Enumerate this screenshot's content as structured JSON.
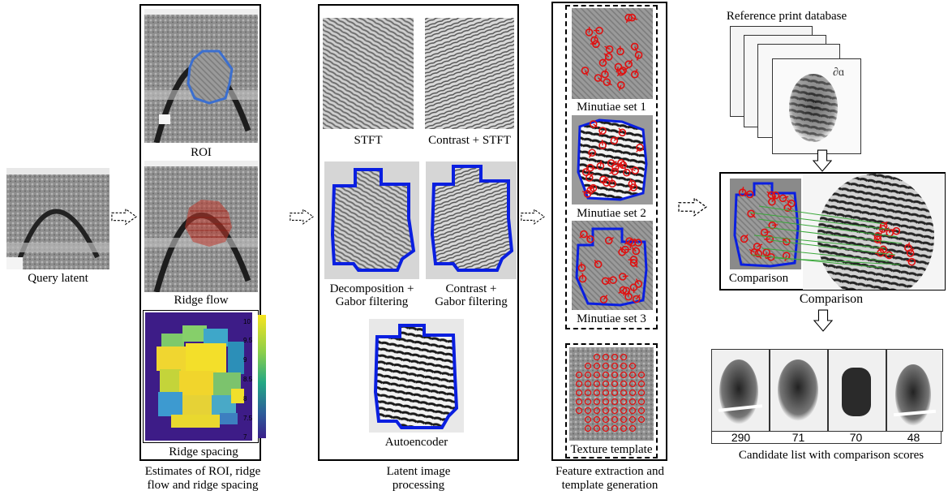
{
  "query": {
    "label": "Query latent"
  },
  "stage1": {
    "roi_label": "ROI",
    "ridge_flow_label": "Ridge flow",
    "ridge_spacing_label": "Ridge spacing",
    "colorbar_ticks": [
      "10",
      "9.5",
      "9",
      "8.5",
      "8",
      "7.5",
      "7"
    ],
    "caption_line1": "Estimates of ROI, ridge",
    "caption_line2": "flow and ridge spacing"
  },
  "stage2": {
    "stft_label": "STFT",
    "contrast_stft_label": "Contrast + STFT",
    "decomp_line1": "Decomposition +",
    "decomp_line2": "Gabor filtering",
    "contrast_gabor_line1": "Contrast +",
    "contrast_gabor_line2": "Gabor filtering",
    "autoencoder_label": "Autoencoder",
    "caption_line1": "Latent image",
    "caption_line2": "processing"
  },
  "stage3": {
    "minutiae1_label": "Minutiae set 1",
    "minutiae2_label": "Minutiae set 2",
    "minutiae3_label": "Minutiae set 3",
    "texture_label": "Texture template",
    "caption_line1": "Feature extraction and",
    "caption_line2": "template generation"
  },
  "stage4": {
    "database_label": "Reference print database",
    "comparison_inner_label": "Comparison",
    "comparison_label": "Comparison",
    "scores": [
      "290",
      "71",
      "70",
      "48"
    ],
    "candidate_caption": "Candidate list with comparison scores"
  },
  "colors": {
    "roi": "#3b6fd0",
    "mask": "#0a1fe0",
    "minutia": "#e01010",
    "match_line": "#3aa83a"
  }
}
